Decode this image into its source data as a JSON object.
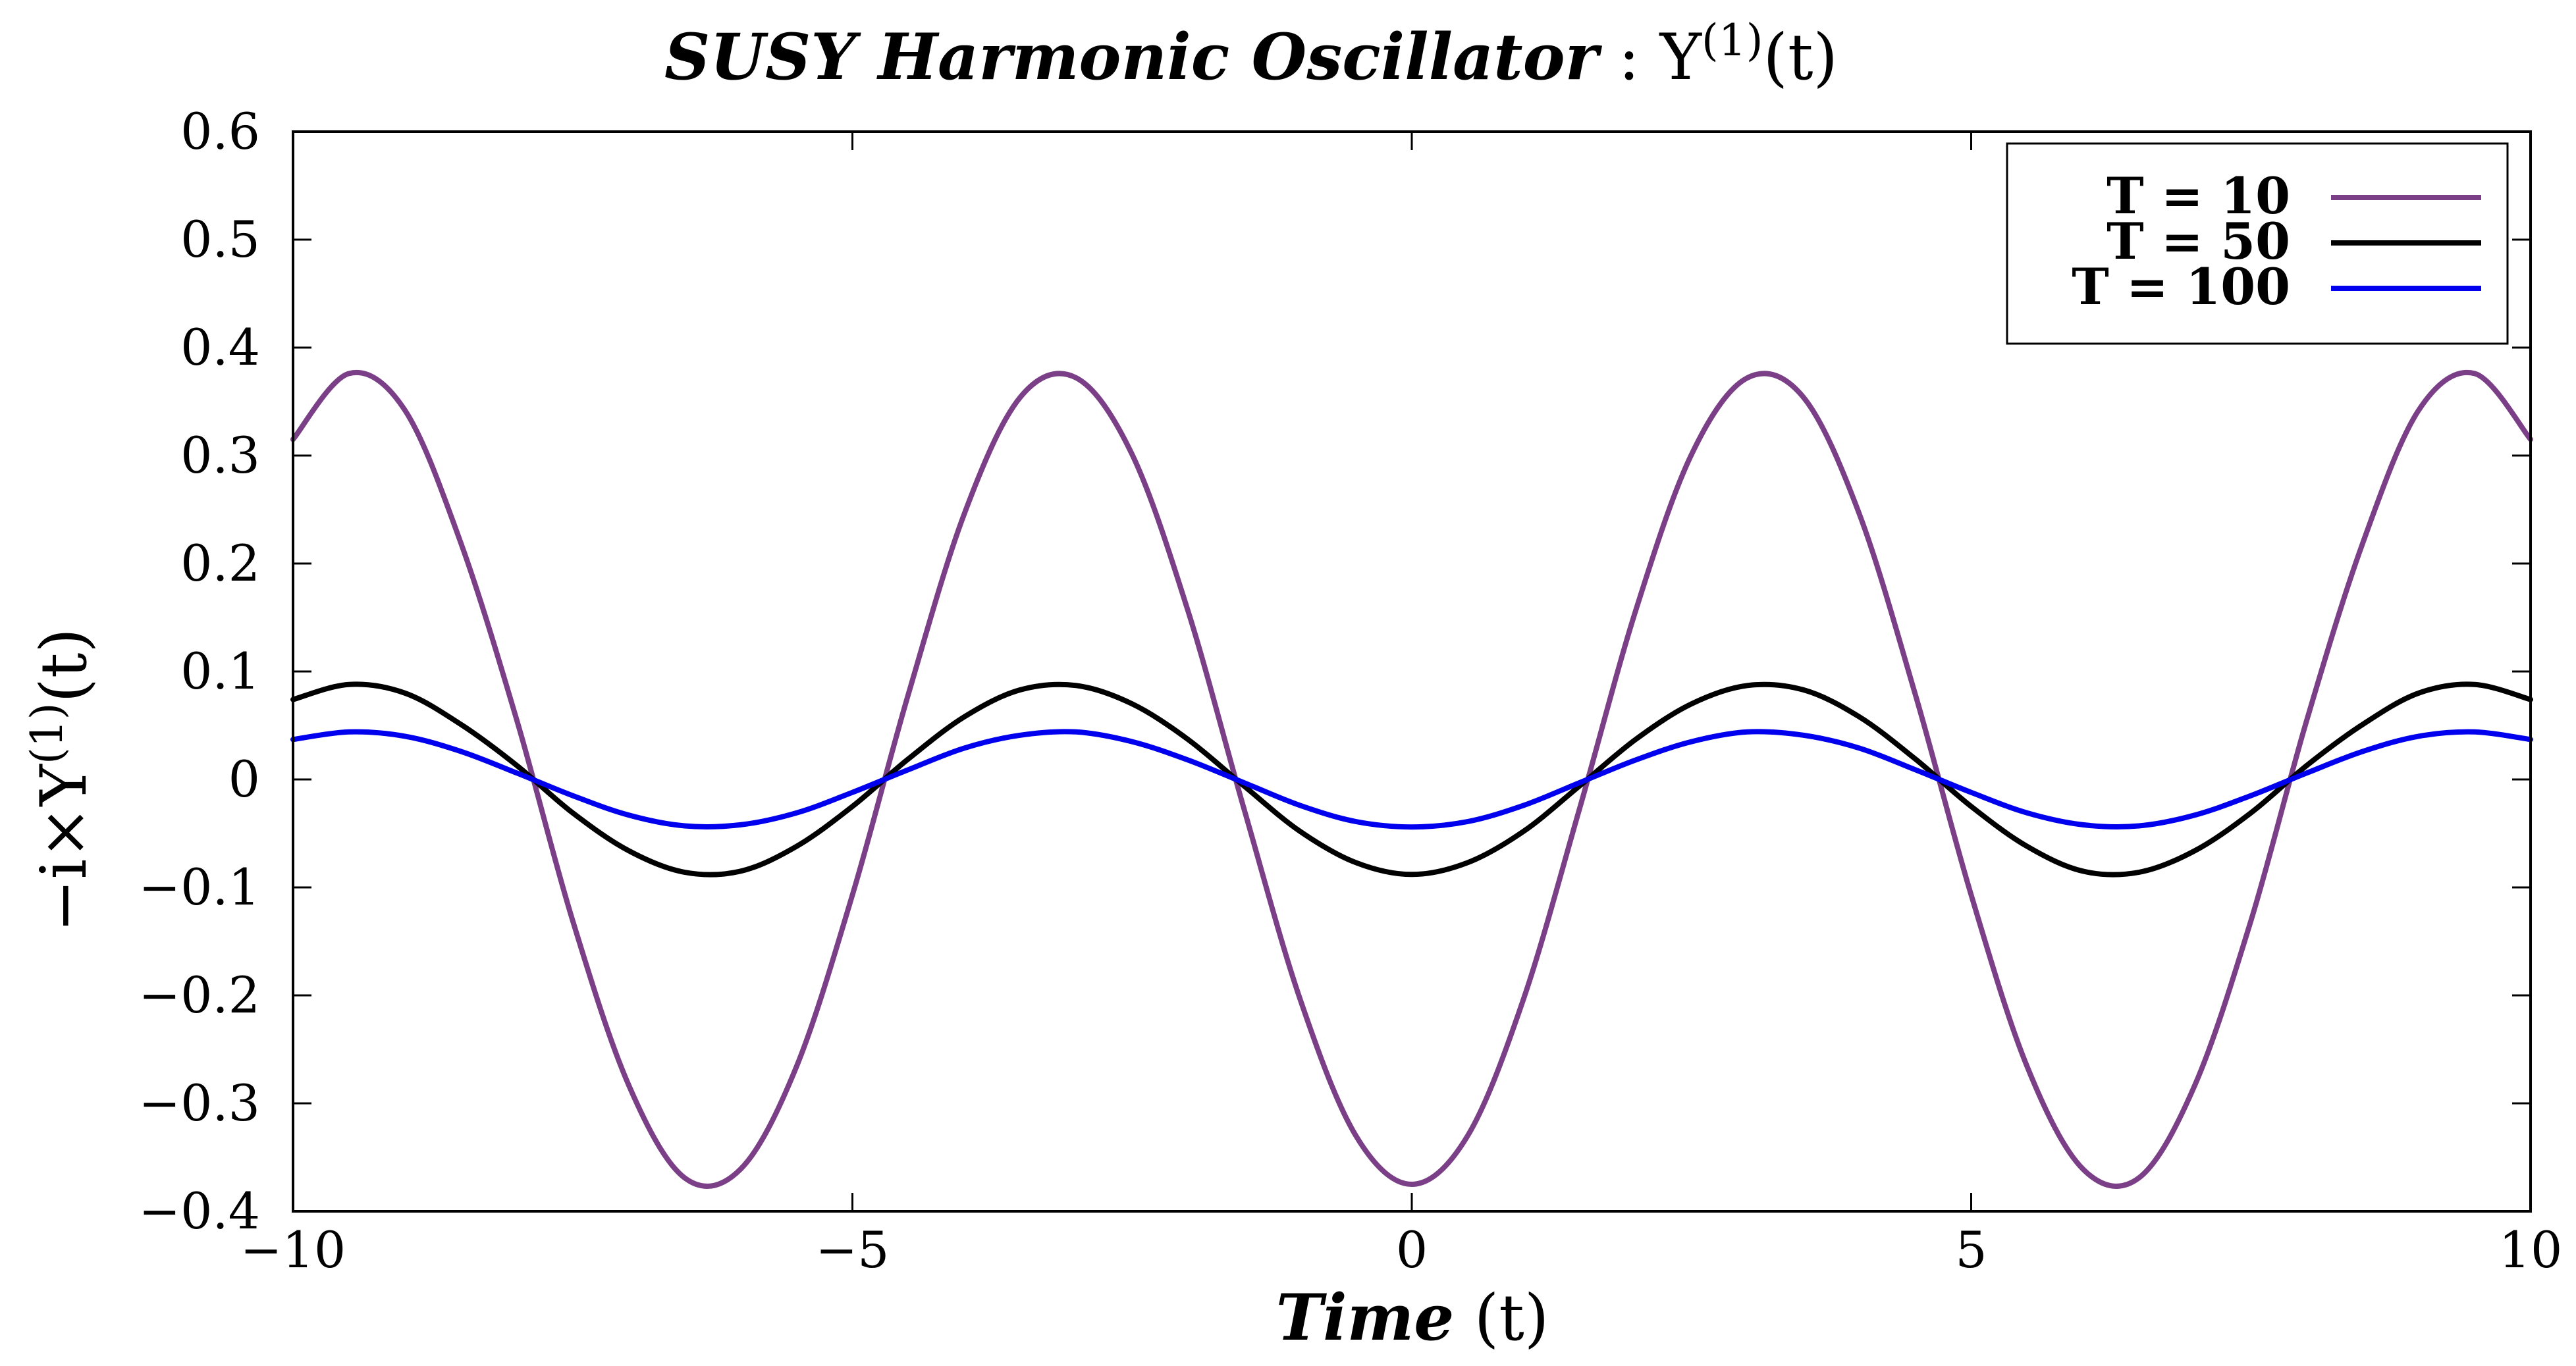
{
  "chart_data": {
    "type": "line",
    "title": {
      "main": "SUSY Harmonic Oscillator",
      "sep": " : ",
      "symbol": "Y",
      "superscript": "(1)",
      "argument": "(t)"
    },
    "xlabel": {
      "main": "Time",
      "rest": " (t)"
    },
    "ylabel": {
      "prefix": "−i×Y",
      "superscript": "(1)",
      "suffix": "(t)"
    },
    "xlim": [
      -10,
      10
    ],
    "ylim": [
      -0.4,
      0.6
    ],
    "xticks": [
      -10,
      -5,
      0,
      5,
      10
    ],
    "xtick_labels": [
      "−10",
      "−5",
      "0",
      "5",
      "10"
    ],
    "yticks": [
      -0.4,
      -0.3,
      -0.2,
      -0.1,
      0,
      0.1,
      0.2,
      0.3,
      0.4,
      0.5,
      0.6
    ],
    "ytick_labels": [
      "−0.4",
      "−0.3",
      "−0.2",
      "−0.1",
      "0",
      "0.1",
      "0.2",
      "0.3",
      "0.4",
      "0.5",
      "0.6"
    ],
    "grid": false,
    "legend_position": "top-right",
    "x": [
      -10,
      -9.5,
      -9,
      -8.5,
      -8,
      -7.5,
      -7,
      -6.5,
      -6,
      -5.5,
      -5,
      -4.5,
      -4,
      -3.5,
      -3,
      -2.5,
      -2,
      -1.5,
      -1,
      -0.5,
      0,
      0.5,
      1,
      1.5,
      2,
      2.5,
      3,
      3.5,
      4,
      4.5,
      5,
      5.5,
      6,
      6.5,
      7,
      7.5,
      8,
      8.5,
      9,
      9.5,
      10
    ],
    "series": [
      {
        "name": "T = 10",
        "color": "#7a3f86",
        "values": [
          0.315,
          0.376,
          0.342,
          0.219,
          0.055,
          -0.131,
          -0.283,
          -0.369,
          -0.361,
          -0.266,
          -0.107,
          0.079,
          0.246,
          0.354,
          0.372,
          0.301,
          0.156,
          -0.027,
          -0.203,
          -0.33,
          -0.375,
          -0.33,
          -0.203,
          -0.027,
          0.156,
          0.301,
          0.372,
          0.354,
          0.246,
          0.079,
          -0.107,
          -0.266,
          -0.361,
          -0.369,
          -0.283,
          -0.131,
          0.055,
          0.219,
          0.342,
          0.376,
          0.315
        ]
      },
      {
        "name": "T = 50",
        "color": "#000000",
        "values": [
          0.074,
          0.088,
          0.08,
          0.051,
          0.013,
          -0.031,
          -0.066,
          -0.086,
          -0.085,
          -0.062,
          -0.025,
          0.019,
          0.058,
          0.083,
          0.087,
          0.07,
          0.037,
          -0.006,
          -0.048,
          -0.077,
          -0.088,
          -0.077,
          -0.048,
          -0.006,
          0.037,
          0.07,
          0.087,
          0.083,
          0.058,
          0.019,
          -0.025,
          -0.062,
          -0.085,
          -0.086,
          -0.066,
          -0.031,
          0.013,
          0.051,
          0.08,
          0.088,
          0.074
        ]
      },
      {
        "name": "T = 100",
        "color": "#0000ee",
        "values": [
          0.037,
          0.044,
          0.04,
          0.026,
          0.006,
          -0.015,
          -0.033,
          -0.043,
          -0.042,
          -0.031,
          -0.012,
          0.009,
          0.029,
          0.041,
          0.044,
          0.035,
          0.018,
          -0.003,
          -0.024,
          -0.039,
          -0.044,
          -0.039,
          -0.024,
          -0.003,
          0.018,
          0.035,
          0.044,
          0.041,
          0.029,
          0.009,
          -0.012,
          -0.031,
          -0.042,
          -0.043,
          -0.033,
          -0.015,
          0.006,
          0.026,
          0.04,
          0.044,
          0.037
        ]
      }
    ]
  }
}
